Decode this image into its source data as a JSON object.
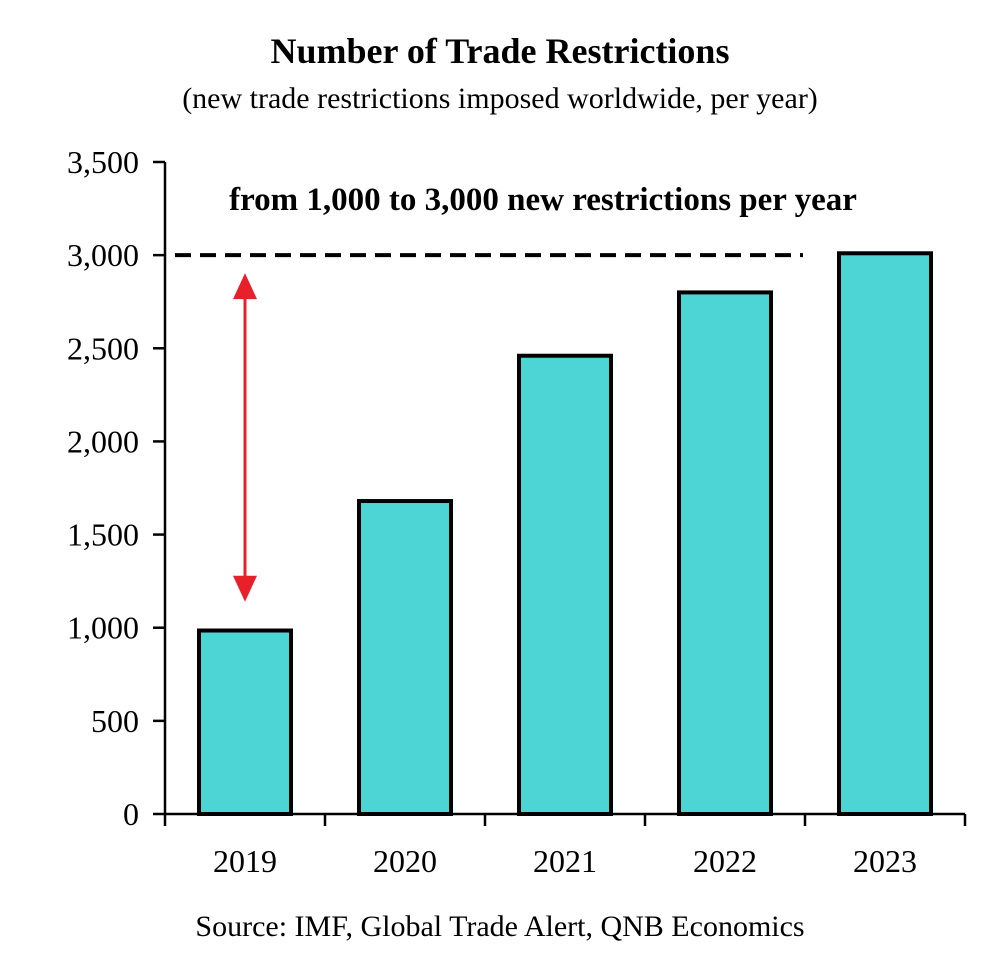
{
  "chart_data": {
    "type": "bar",
    "title": "Number of Trade Restrictions",
    "subtitle": "(new trade restrictions imposed worldwide, per year)",
    "categories": [
      "2019",
      "2020",
      "2021",
      "2022",
      "2023"
    ],
    "values": [
      985,
      1680,
      2460,
      2800,
      3010
    ],
    "ylim": [
      0,
      3500
    ],
    "yticks": [
      0,
      500,
      1000,
      1500,
      2000,
      2500,
      3000,
      3500
    ],
    "ytick_labels": [
      "0",
      "500",
      "1,000",
      "1,500",
      "2,000",
      "2,500",
      "3,000",
      "3,500"
    ],
    "xlabel": "",
    "ylabel": "",
    "grid": false,
    "legend": "none",
    "bar_color": "#4dd4d4",
    "annotation": {
      "text": "from 1,000 to 3,000 new restrictions per year",
      "reference_line_value": 3000,
      "arrow_from_value": 1000,
      "arrow_to_value": 3000,
      "arrow_color": "#e8202a"
    },
    "source": "Source: IMF, Global Trade Alert, QNB Economics"
  }
}
